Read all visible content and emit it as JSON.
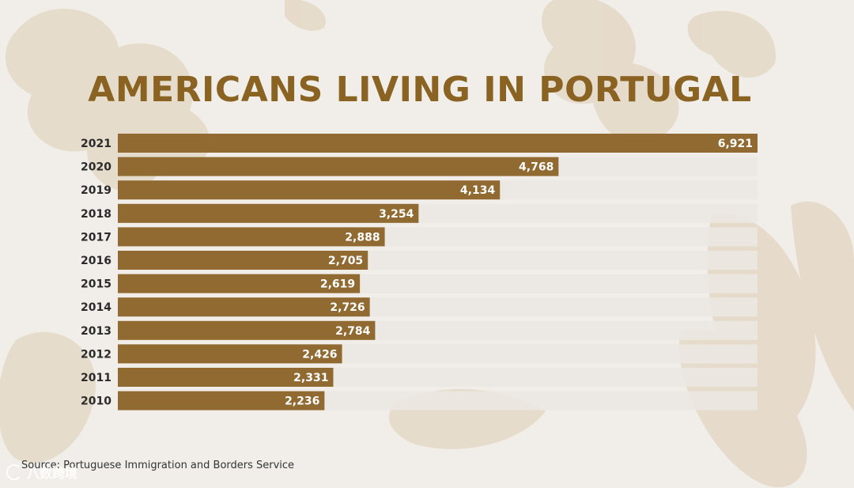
{
  "chart_data": {
    "type": "bar",
    "orientation": "horizontal",
    "title": "AMERICANS LIVING IN PORTUGAL",
    "categories": [
      "2021",
      "2020",
      "2019",
      "2018",
      "2017",
      "2016",
      "2015",
      "2014",
      "2013",
      "2012",
      "2011",
      "2010"
    ],
    "values": [
      6921,
      4768,
      4134,
      3254,
      2888,
      2705,
      2619,
      2726,
      2784,
      2426,
      2331,
      2236
    ],
    "value_labels": [
      "6,921",
      "4,768",
      "4,134",
      "3,254",
      "2,888",
      "2,705",
      "2,619",
      "2,726",
      "2,784",
      "2,426",
      "2,331",
      "2,236"
    ],
    "xlim": [
      0,
      6921
    ],
    "xlabel": "",
    "ylabel": "",
    "source": "Source: Portuguese Immigration and Borders Service"
  },
  "colors": {
    "bar": "#906a31",
    "track": "#ebe8e3",
    "title": "#8a6222",
    "background": "#f1eee9"
  },
  "watermark": {
    "icon": "watermark-logo-icon",
    "text": "八数跨境"
  }
}
